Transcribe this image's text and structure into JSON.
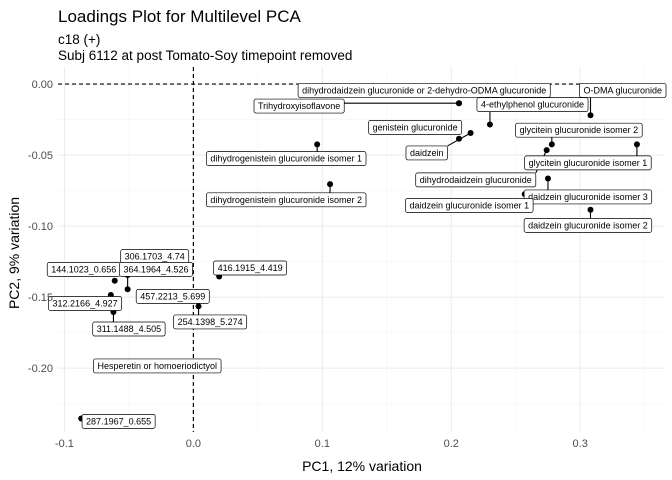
{
  "chart_data": {
    "type": "scatter",
    "title": "Loadings Plot for Multilevel PCA",
    "subtitle_lines": [
      "c18 (+)",
      "Subj 6112 at post Tomato-Soy timepoint removed"
    ],
    "xlabel": "PC1, 12% variation",
    "ylabel": "PC2, 9% variation",
    "xlim": [
      -0.105,
      0.365
    ],
    "ylim": [
      -0.245,
      0.012
    ],
    "x_ticks": [
      -0.1,
      0.0,
      0.1,
      0.2,
      0.3
    ],
    "x_tick_labels": [
      "-0.1",
      "0.0",
      "0.1",
      "0.2",
      "0.3"
    ],
    "y_ticks": [
      0.0,
      -0.05,
      -0.1,
      -0.15,
      -0.2
    ],
    "y_tick_labels": [
      "0.00",
      "-0.05",
      "-0.10",
      "-0.15",
      "-0.20"
    ],
    "grid": true,
    "reference_lines": {
      "x": 0,
      "y": 0
    },
    "points": [
      {
        "label": "O-DMA glucuronide",
        "x": 0.308,
        "y": -0.022,
        "lx": 0.333,
        "ly": -0.0045
      },
      {
        "label": "dihydrodaidzein glucuronide or 2-dehydro-ODMA glucuronide",
        "x": 0.206,
        "y": -0.0135,
        "lx": 0.179,
        "ly": -0.0045
      },
      {
        "label": "Trihydroxyisoflavone",
        "x": 0.206,
        "y": -0.0135,
        "lx": 0.082,
        "ly": -0.0155
      },
      {
        "label": "4-ethylphenol glucuronide",
        "x": 0.23,
        "y": -0.0285,
        "lx": 0.263,
        "ly": -0.0145
      },
      {
        "label": "genistein glucuronide",
        "x": 0.206,
        "y": -0.0385,
        "lx": 0.172,
        "ly": -0.0305
      },
      {
        "label": "daidzein",
        "x": 0.215,
        "y": -0.0345,
        "lx": 0.181,
        "ly": -0.0485
      },
      {
        "label": "glycitein glucuronide isomer 2",
        "x": 0.278,
        "y": -0.0425,
        "lx": 0.299,
        "ly": -0.0325
      },
      {
        "label": "dihydrogenistein glucuronide isomer 1",
        "x": 0.096,
        "y": -0.0425,
        "lx": 0.072,
        "ly": -0.0525
      },
      {
        "label": "glycitein glucuronide isomer 1",
        "x": 0.344,
        "y": -0.0425,
        "lx": 0.306,
        "ly": -0.0555
      },
      {
        "label": "dihydrodaidzein glucuronide",
        "x": 0.274,
        "y": -0.0465,
        "lx": 0.219,
        "ly": -0.0675
      },
      {
        "label": "daidzein glucuronide isomer 3",
        "x": 0.275,
        "y": -0.0665,
        "lx": 0.306,
        "ly": -0.0795
      },
      {
        "label": "dihydrogenistein glucuronide isomer 2",
        "x": 0.106,
        "y": -0.0705,
        "lx": 0.072,
        "ly": -0.0815
      },
      {
        "label": "daidzein glucuronide isomer 1",
        "x": 0.257,
        "y": -0.0775,
        "lx": 0.214,
        "ly": -0.0855
      },
      {
        "label": "daidzein glucuronide isomer 2",
        "x": 0.308,
        "y": -0.0885,
        "lx": 0.306,
        "ly": -0.0995
      },
      {
        "label": "306.1703_4.74",
        "x": -0.051,
        "y": -0.1345,
        "lx": -0.03,
        "ly": -0.1215
      },
      {
        "label": "144.1023_0.656",
        "x": -0.061,
        "y": -0.1385,
        "lx": -0.085,
        "ly": -0.1305
      },
      {
        "label": "364.1964_4.526",
        "x": -0.051,
        "y": -0.1445,
        "lx": -0.029,
        "ly": -0.1305
      },
      {
        "label": "416.1915_4.419",
        "x": 0.02,
        "y": -0.1355,
        "lx": 0.044,
        "ly": -0.1295
      },
      {
        "label": "312.2166_4.927",
        "x": -0.064,
        "y": -0.1485,
        "lx": -0.084,
        "ly": -0.1545
      },
      {
        "label": "457.2213_5.699",
        "x": -0.04,
        "y": -0.1495,
        "lx": -0.016,
        "ly": -0.1495
      },
      {
        "label": "254.1398_5.274",
        "x": 0.004,
        "y": -0.1565,
        "lx": 0.013,
        "ly": -0.1675
      },
      {
        "label": "311.1488_4.505",
        "x": -0.062,
        "y": -0.1605,
        "lx": -0.05,
        "ly": -0.1725
      },
      {
        "label": "Hesperetin or homoeriodictyol",
        "x": -0.073,
        "y": -0.1985,
        "lx": -0.028,
        "ly": -0.1985
      },
      {
        "label": "287.1967_0.655",
        "x": -0.087,
        "y": -0.2355,
        "lx": -0.058,
        "ly": -0.2375
      }
    ]
  }
}
